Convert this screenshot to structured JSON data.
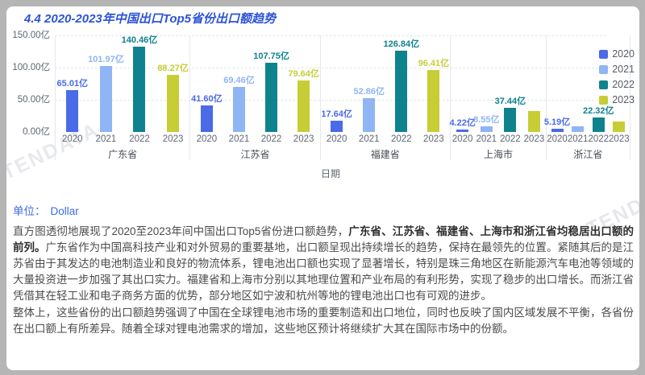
{
  "title": "4.4 2020-2023年中国出口Top5省份出口额趋势",
  "watermark": "TENDATA",
  "colors": {
    "accent_title": "#2c53d8",
    "accent_unit": "#3c6be5"
  },
  "chart_data": {
    "type": "bar",
    "title": "4.4 2020-2023年中国出口Top5省份出口额趋势",
    "xlabel": "日期",
    "ylabel": "",
    "unit": "亿",
    "ylim": [
      0,
      150
    ],
    "ytick_labels": [
      "150.00亿",
      "100.00亿",
      "50.00亿",
      "0.00亿"
    ],
    "grid": true,
    "legend_position": "top-right",
    "categories": [
      "广东省",
      "江苏省",
      "福建省",
      "上海市",
      "浙江省"
    ],
    "series": [
      {
        "name": "2020",
        "color": "#4a6ae8",
        "values": [
          65.01,
          41.6,
          17.64,
          4.22,
          5.19
        ],
        "labels": [
          "65.01亿",
          "41.60亿",
          "17.64亿",
          "4.22亿",
          "5.19亿"
        ]
      },
      {
        "name": "2021",
        "color": "#8fb5f4",
        "values": [
          101.97,
          69.46,
          52.86,
          8.55,
          9.0
        ],
        "labels": [
          "101.97亿",
          "69.46亿",
          "52.86亿",
          "8.55亿",
          ""
        ]
      },
      {
        "name": "2022",
        "color": "#0e838d",
        "values": [
          140.46,
          107.75,
          126.84,
          37.44,
          22.32
        ],
        "labels": [
          "140.46亿",
          "107.75亿",
          "126.84亿",
          "37.44亿",
          "22.32亿"
        ]
      },
      {
        "name": "2023",
        "color": "#c6cd35",
        "values": [
          88.27,
          79.64,
          96.41,
          32.4,
          16.5
        ],
        "labels": [
          "88.27亿",
          "79.64亿",
          "96.41亿",
          "",
          ""
        ]
      }
    ]
  },
  "unit_line": {
    "label": "单位：",
    "value": "Dollar"
  },
  "paragraphs": [
    {
      "segments": [
        {
          "text": "直方图透彻地展现了2020至2023年间中国出口Top5省份进口额趋势，",
          "bold": false
        },
        {
          "text": "广东省、江苏省、福建省、上海市和浙江省均稳居出口额的前列。",
          "bold": true
        },
        {
          "text": "广东省作为中国高科技产业和对外贸易的重要基地，出口额呈现出持续增长的趋势，保持在最领先的位置。紧随其后的是江苏省由于其发达的电池制造业和良好的物流体系，锂电池出口额也实现了显著增长，特别是珠三角地区在新能源汽车电池等领域的大量投资进一步加强了其出口实力。福建省和上海市分别以其地理位置和产业布局的有利形势，实现了稳步的出口增长。而浙江省凭借其在轻工业和电子商务方面的优势，部分地区如宁波和杭州等地的锂电池出口也有可观的进步。",
          "bold": false
        }
      ]
    },
    {
      "segments": [
        {
          "text": "整体上，这些省份的出口额趋势强调了中国在全球锂电池市场的重要制造和出口地位，同时也反映了国内区域发展不平衡，各省份在出口额上有所差异。随着全球对锂电池需求的增加，这些地区预计将继续扩大其在国际市场中的份额。",
          "bold": false
        }
      ]
    }
  ]
}
